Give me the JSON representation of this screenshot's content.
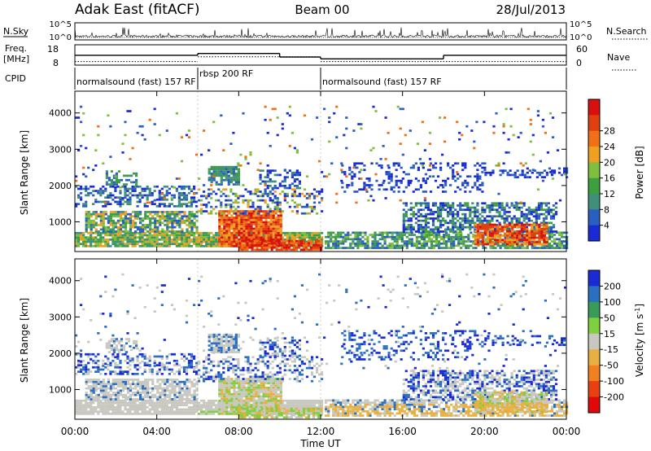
{
  "header": {
    "station": "Adak East (fitACF)",
    "beam": "Beam 00",
    "date": "28/Jul/2013"
  },
  "chart_data": [
    {
      "type": "line",
      "panel": "noise",
      "left_label": "N.Sky",
      "right_label": "N.Search",
      "left_ticks": [
        "10^5",
        "10^0"
      ],
      "right_ticks": [
        "10^5",
        "10^0"
      ],
      "x_range_hours": [
        0,
        24
      ]
    },
    {
      "type": "line",
      "panel": "frequency",
      "left_label": "Freq.",
      "left_unit": "[MHz]",
      "right_label": "Nave",
      "left_ticks": [
        18,
        8
      ],
      "right_ticks": [
        60,
        0
      ],
      "freq_steps": [
        {
          "x0": 0,
          "x1": 6,
          "y": 13.5
        },
        {
          "x0": 6,
          "x1": 10,
          "y": 14.5
        },
        {
          "x0": 10,
          "x1": 12,
          "y": 12.5
        },
        {
          "x0": 12,
          "x1": 18,
          "y": 11.5
        },
        {
          "x0": 18,
          "x1": 24,
          "y": 13.5
        }
      ],
      "nave_steps": [
        {
          "x0": 0,
          "x1": 6,
          "y": 12
        },
        {
          "x0": 6,
          "x1": 12,
          "y": 28
        },
        {
          "x0": 12,
          "x1": 24,
          "y": 12
        }
      ]
    },
    {
      "type": "table",
      "panel": "cpid",
      "label": "CPID",
      "segments": [
        {
          "start": 0,
          "end": 6,
          "name": "normalsound (fast) 157 RF"
        },
        {
          "start": 6,
          "end": 12,
          "name": "rbsp 200 RF"
        },
        {
          "start": 12,
          "end": 24,
          "name": "normalsound (fast) 157 RF"
        }
      ]
    },
    {
      "type": "heatmap",
      "panel": "power",
      "ylabel": "Slant Range [km]",
      "yticks": [
        1000,
        2000,
        3000,
        4000
      ],
      "ylim": [
        180,
        4600
      ],
      "colorbar_label": "Power [dB]",
      "colorbar_ticks": [
        4,
        8,
        12,
        16,
        20,
        24,
        28
      ],
      "colorbar_colors": [
        "#1a2bd6",
        "#2a5ec0",
        "#3f8f7a",
        "#3f9e3f",
        "#7fbf3f",
        "#f0a020",
        "#f07018",
        "#e04010",
        "#d81010"
      ]
    },
    {
      "type": "heatmap",
      "panel": "velocity",
      "ylabel": "Slant Range [km]",
      "yticks": [
        1000,
        2000,
        3000,
        4000
      ],
      "ylim": [
        180,
        4600
      ],
      "xlabel": "Time UT",
      "xticks": [
        "00:00",
        "04:00",
        "08:00",
        "12:00",
        "16:00",
        "20:00",
        "00:00"
      ],
      "colorbar_label": "Velocity",
      "colorbar_unit": "[m s",
      "colorbar_unit_sup": "-1",
      "colorbar_unit_end": "]",
      "colorbar_ticks": [
        "200",
        "100",
        "50",
        "15",
        "-15",
        "-50",
        "-100",
        "-200"
      ],
      "colorbar_colors": [
        "#1a2bd6",
        "#2a6fc0",
        "#3a9a5a",
        "#7fcf3f",
        "#c8c8c0",
        "#e8b040",
        "#f08020",
        "#e84010",
        "#e00808"
      ]
    }
  ]
}
